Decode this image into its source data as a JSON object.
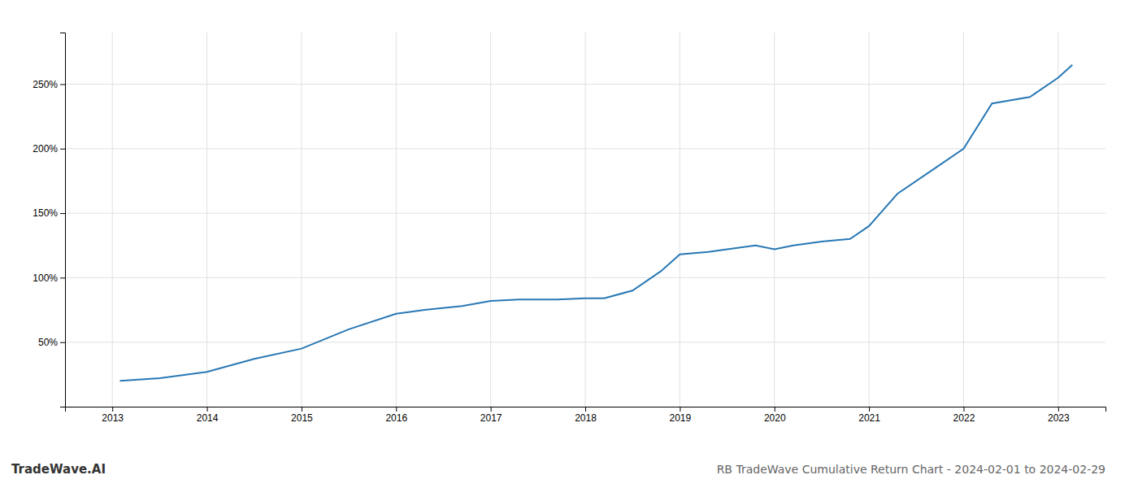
{
  "chart_data": {
    "type": "line",
    "title": "RB TradeWave Cumulative Return Chart - 2024-02-01 to 2024-02-29",
    "annotations": [
      "TradeWave.AI"
    ],
    "x": [
      2013.08,
      2013.5,
      2014.0,
      2014.5,
      2015.0,
      2015.5,
      2016.0,
      2016.3,
      2016.7,
      2017.0,
      2017.3,
      2017.7,
      2018.0,
      2018.2,
      2018.5,
      2018.8,
      2019.0,
      2019.3,
      2019.5,
      2019.8,
      2020.0,
      2020.2,
      2020.5,
      2020.8,
      2021.0,
      2021.3,
      2021.7,
      2022.0,
      2022.3,
      2022.7,
      2023.0,
      2023.15
    ],
    "values": [
      20,
      22,
      27,
      37,
      45,
      60,
      72,
      75,
      78,
      82,
      83,
      83,
      84,
      84,
      90,
      105,
      118,
      120,
      122,
      125,
      122,
      125,
      128,
      130,
      140,
      165,
      185,
      200,
      235,
      240,
      255,
      265
    ],
    "color": "#2878b5",
    "xlim": [
      2012.5,
      2023.5
    ],
    "xticks": [
      2013,
      2014,
      2015,
      2016,
      2017,
      2018,
      2019,
      2020,
      2021,
      2022,
      2023
    ],
    "ylim": [
      0,
      290
    ],
    "yticks": [
      {
        "value": 50,
        "label": "50%"
      },
      {
        "value": 100,
        "label": "100%"
      },
      {
        "value": 150,
        "label": "150%"
      },
      {
        "value": 200,
        "label": "200%"
      },
      {
        "value": 250,
        "label": "250%"
      }
    ],
    "grid": true
  }
}
